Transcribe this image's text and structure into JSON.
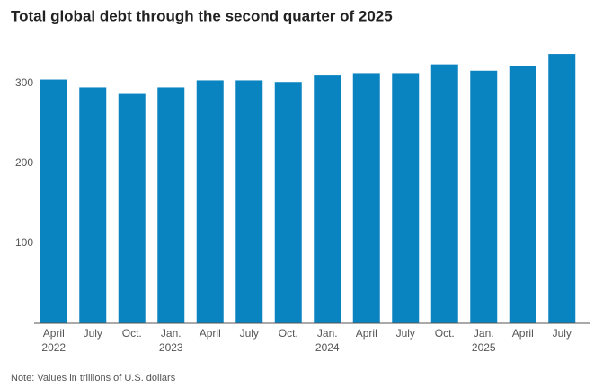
{
  "chart_data": {
    "type": "bar",
    "title": "Total global debt through the second quarter of 2025",
    "note": "Note: Values in trillions of U.S. dollars",
    "categories": [
      "April 2022",
      "July",
      "Oct.",
      "Jan. 2023",
      "April",
      "July",
      "Oct.",
      "Jan. 2024",
      "April",
      "July",
      "Oct.",
      "Jan. 2025",
      "April",
      "July"
    ],
    "values": [
      305,
      295,
      287,
      295,
      304,
      304,
      302,
      310,
      313,
      313,
      324,
      316,
      322,
      337
    ],
    "color": "#0a84c1",
    "ylim": [
      0,
      350
    ],
    "yticks": [
      100,
      200,
      300
    ],
    "grid": false
  }
}
